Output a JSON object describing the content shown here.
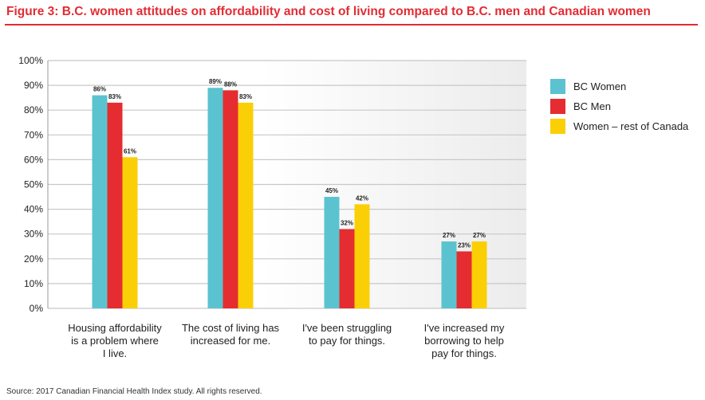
{
  "title": "Figure 3: B.C. women attitudes on affordability and cost of living compared to B.C. men and Canadian women",
  "source": "Source: 2017 Canadian Financial Health Index study. All rights reserved.",
  "chart_data": {
    "type": "bar",
    "categories": [
      [
        "Housing affordability",
        "is a problem where",
        "I live."
      ],
      [
        "The cost of living has",
        "increased for me."
      ],
      [
        "I've been struggling",
        "to pay for things."
      ],
      [
        "I've increased my",
        "borrowing to help",
        "pay for things."
      ]
    ],
    "series": [
      {
        "name": "BC Women",
        "values": [
          86,
          89,
          45,
          27
        ],
        "color": "#5bc3d0"
      },
      {
        "name": "BC Men",
        "values": [
          83,
          88,
          32,
          23
        ],
        "color": "#e52c30"
      },
      {
        "name": "Women – rest of Canada",
        "values": [
          61,
          83,
          42,
          27
        ],
        "color": "#fbcf06"
      }
    ],
    "ylim": [
      0,
      100
    ],
    "yticks": [
      "0%",
      "10%",
      "20%",
      "30%",
      "40%",
      "50%",
      "60%",
      "70%",
      "80%",
      "90%",
      "100%"
    ],
    "grid": true,
    "legend": "right"
  }
}
